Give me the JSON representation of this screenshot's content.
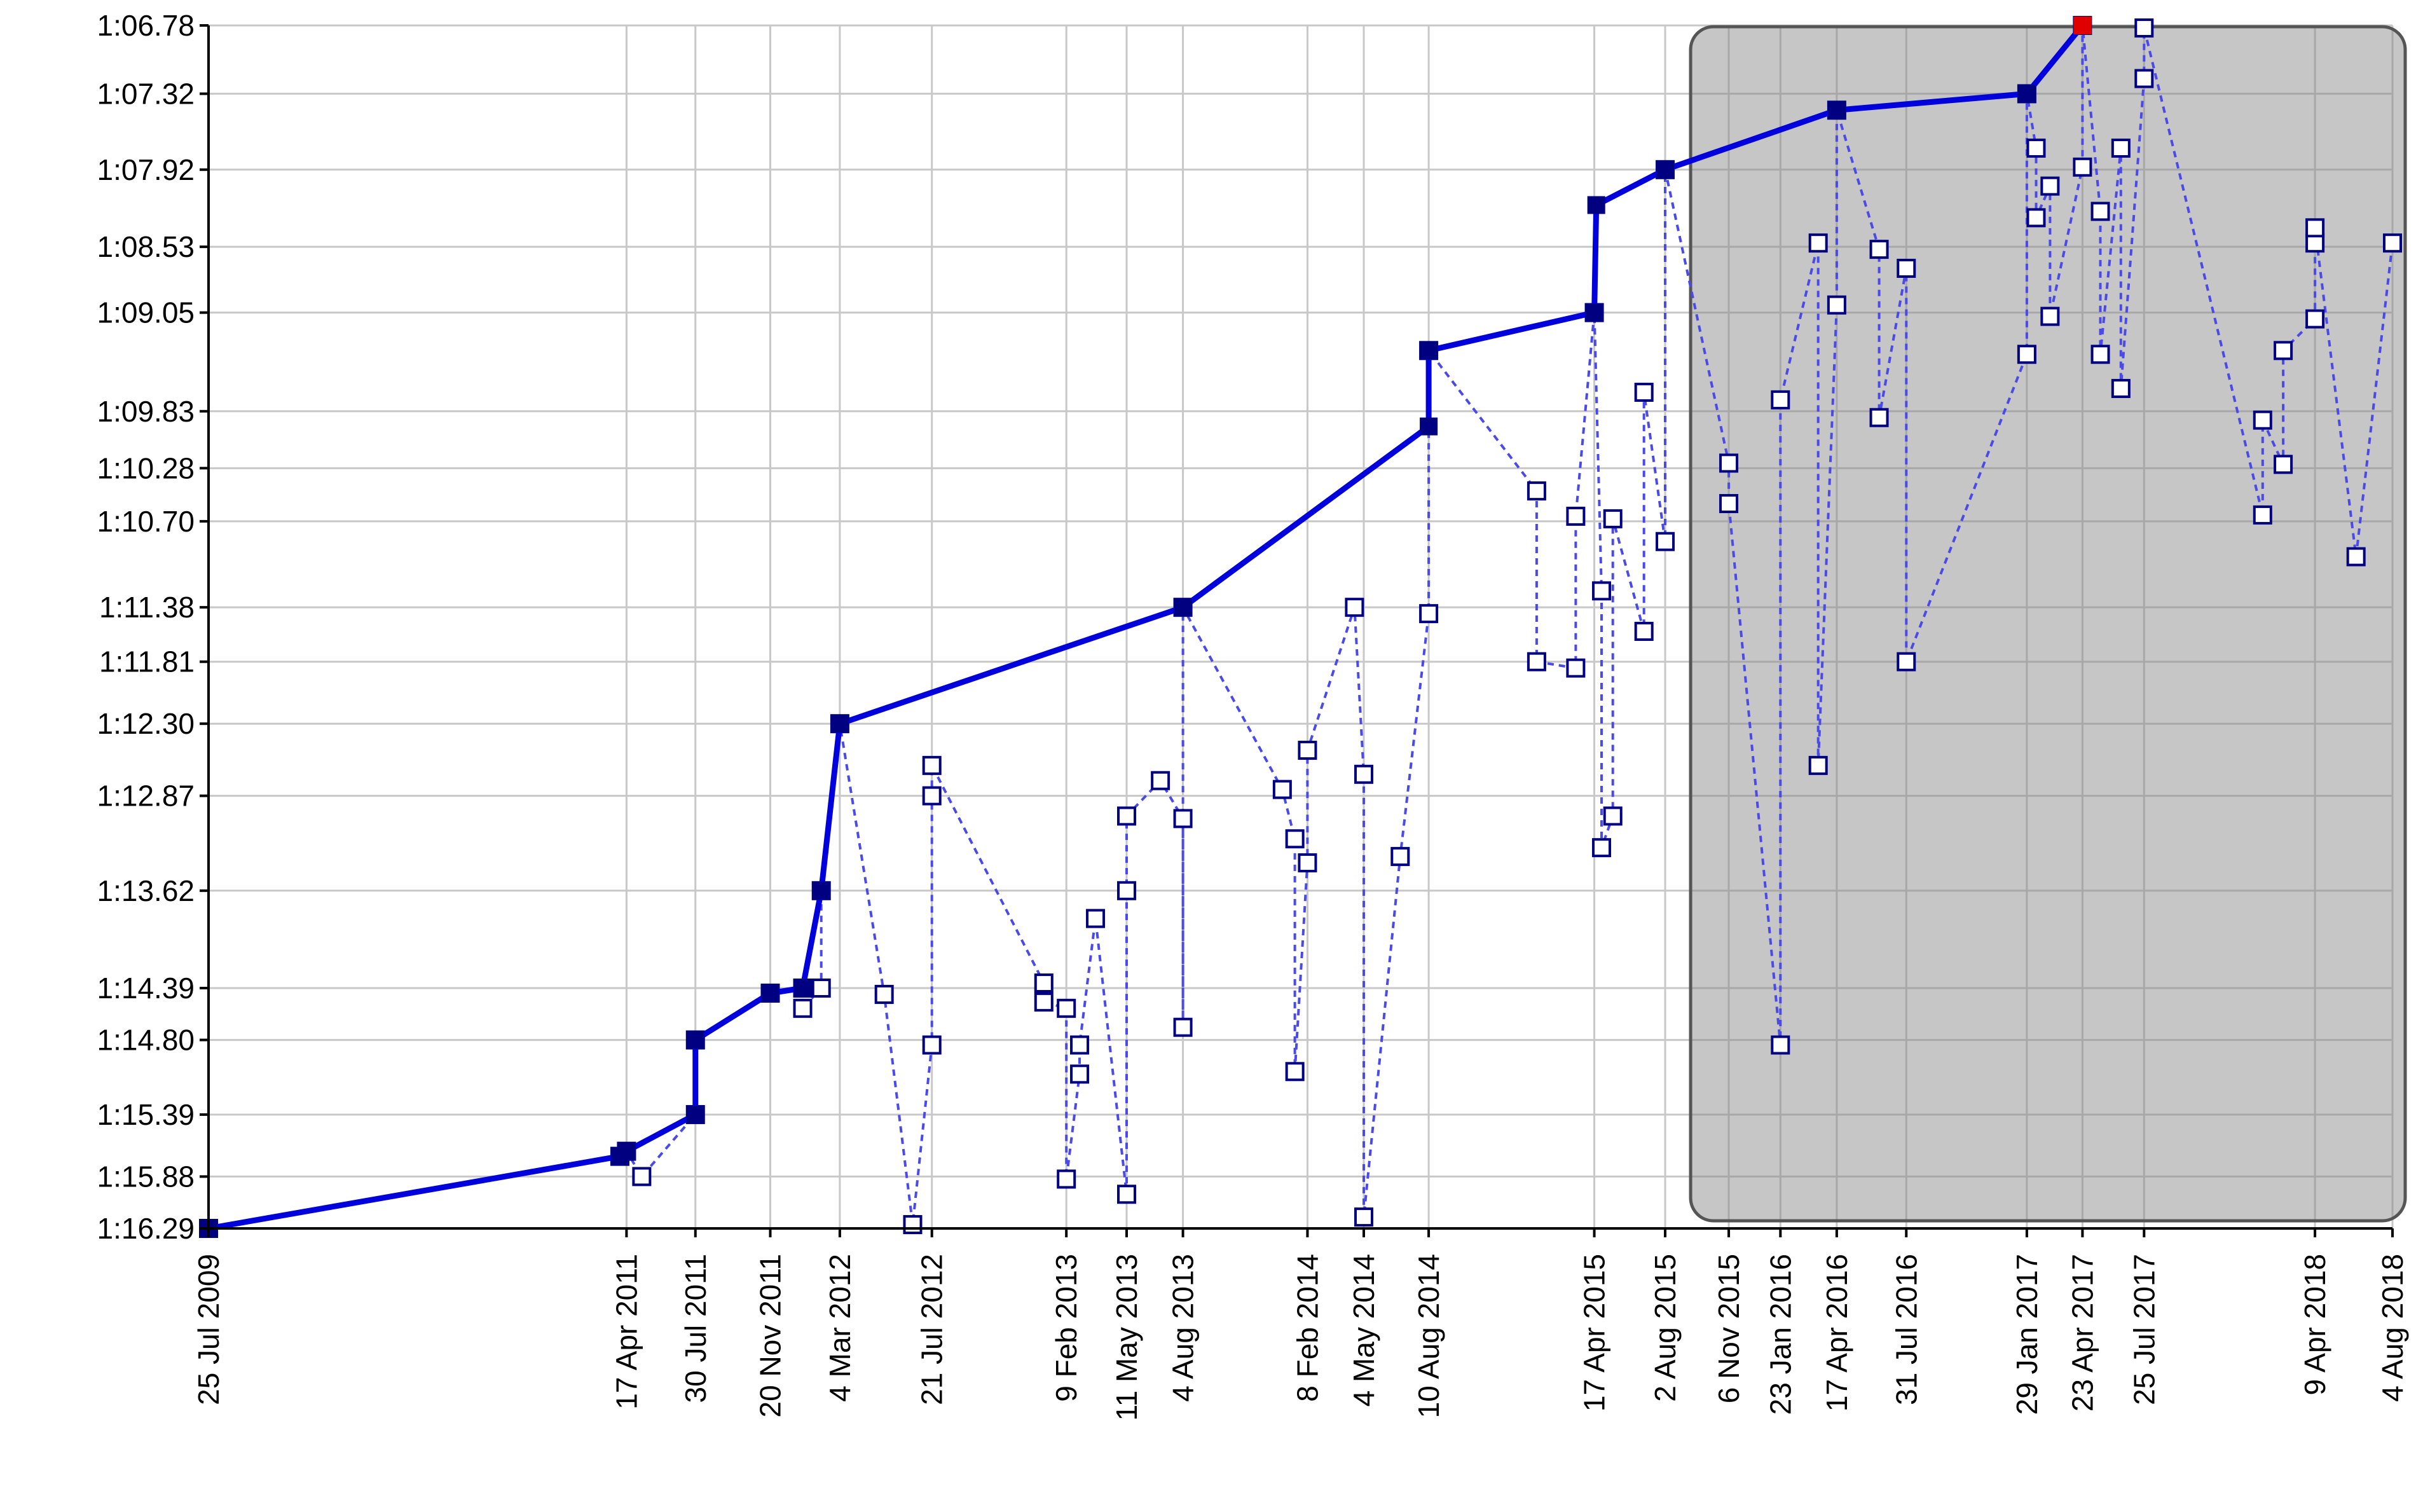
{
  "chart_data": {
    "type": "line",
    "y_axis": {
      "reversed": true,
      "ticks": [
        "1:06.78",
        "1:07.32",
        "1:07.92",
        "1:08.53",
        "1:09.05",
        "1:09.83",
        "1:10.28",
        "1:10.70",
        "1:11.38",
        "1:11.81",
        "1:12.30",
        "1:12.87",
        "1:13.62",
        "1:14.39",
        "1:14.80",
        "1:15.39",
        "1:15.88",
        "1:16.29"
      ],
      "tick_seconds": [
        66.78,
        67.32,
        67.92,
        68.53,
        69.05,
        69.83,
        70.28,
        70.7,
        71.38,
        71.81,
        72.3,
        72.87,
        73.62,
        74.39,
        74.8,
        75.39,
        75.88,
        76.29
      ],
      "range": [
        66.78,
        76.29
      ]
    },
    "x_axis": {
      "ticks": [
        "25 Jul 2009",
        "17 Apr 2011",
        "30 Jul 2011",
        "20 Nov 2011",
        "4 Mar 2012",
        "21 Jul 2012",
        "9 Feb 2013",
        "11 May 2013",
        "4 Aug 2013",
        "8 Feb 2014",
        "4 May 2014",
        "10 Aug 2014",
        "17 Apr 2015",
        "2 Aug 2015",
        "6 Nov 2015",
        "23 Jan 2016",
        "17 Apr 2016",
        "31 Jul 2016",
        "29 Jan 2017",
        "23 Apr 2017",
        "25 Jul 2017",
        "9 Apr 2018",
        "4 Aug 2018"
      ],
      "tick_dates": [
        "2009-07-25",
        "2011-04-17",
        "2011-07-30",
        "2011-11-20",
        "2012-03-04",
        "2012-07-21",
        "2013-02-09",
        "2013-05-11",
        "2013-08-04",
        "2014-02-08",
        "2014-05-04",
        "2014-08-10",
        "2015-04-17",
        "2015-08-02",
        "2015-11-06",
        "2016-01-23",
        "2016-04-17",
        "2016-07-31",
        "2017-01-29",
        "2017-04-23",
        "2017-07-25",
        "2018-04-09",
        "2018-08-04"
      ],
      "range": [
        "2009-07-25",
        "2018-08-04"
      ]
    },
    "grid": true,
    "highlight_range": [
      "2015-08-02",
      "2018-08-04"
    ],
    "series": [
      {
        "style": "best",
        "color": "#0000dd",
        "point_color": "#000080",
        "final_point_color": "#e00000",
        "points": [
          [
            "2009-07-25",
            76.29
          ],
          [
            "2011-04-07",
            75.72
          ],
          [
            "2011-04-17",
            75.68
          ],
          [
            "2011-07-30",
            75.39
          ],
          [
            "2011-07-30",
            74.8
          ],
          [
            "2011-11-20",
            74.43
          ],
          [
            "2012-01-08",
            74.39
          ],
          [
            "2012-02-05",
            73.62
          ],
          [
            "2012-03-04",
            72.3
          ],
          [
            "2013-08-04",
            71.38
          ],
          [
            "2014-08-10",
            69.95
          ],
          [
            "2014-08-10",
            69.35
          ],
          [
            "2015-04-17",
            69.05
          ],
          [
            "2015-04-20",
            68.2
          ],
          [
            "2015-08-02",
            67.92
          ],
          [
            "2016-04-17",
            67.45
          ],
          [
            "2017-01-29",
            67.32
          ],
          [
            "2017-04-23",
            66.78
          ]
        ]
      },
      {
        "style": "all",
        "color": "#4a4ae8",
        "point_color": "#000080",
        "points": [
          [
            "2009-07-25",
            76.29
          ],
          [
            "2011-04-07",
            75.72
          ],
          [
            "2011-04-17",
            75.68
          ],
          [
            "2011-05-10",
            75.88
          ],
          [
            "2011-07-30",
            75.39
          ],
          [
            "2011-07-30",
            74.8
          ],
          [
            "2011-11-20",
            74.43
          ],
          [
            "2012-01-08",
            74.39
          ],
          [
            "2012-01-08",
            74.55
          ],
          [
            "2012-02-05",
            74.39
          ],
          [
            "2012-02-05",
            73.62
          ],
          [
            "2012-03-04",
            72.3
          ],
          [
            "2012-05-10",
            74.44
          ],
          [
            "2012-06-22",
            76.26
          ],
          [
            "2012-07-21",
            74.84
          ],
          [
            "2012-07-21",
            72.87
          ],
          [
            "2012-07-21",
            72.63
          ],
          [
            "2013-01-06",
            74.35
          ],
          [
            "2013-01-06",
            74.5
          ],
          [
            "2013-02-09",
            74.55
          ],
          [
            "2013-02-09",
            75.9
          ],
          [
            "2013-03-01",
            75.07
          ],
          [
            "2013-03-01",
            74.84
          ],
          [
            "2013-03-25",
            73.84
          ],
          [
            "2013-05-11",
            76.02
          ],
          [
            "2013-05-11",
            73.62
          ],
          [
            "2013-05-11",
            73.03
          ],
          [
            "2013-07-01",
            72.75
          ],
          [
            "2013-08-04",
            73.05
          ],
          [
            "2013-08-04",
            74.7
          ],
          [
            "2013-08-04",
            71.38
          ],
          [
            "2014-01-01",
            72.82
          ],
          [
            "2014-01-20",
            73.21
          ],
          [
            "2014-01-20",
            75.05
          ],
          [
            "2014-02-08",
            73.4
          ],
          [
            "2014-02-08",
            72.51
          ],
          [
            "2014-04-20",
            71.38
          ],
          [
            "2014-05-04",
            72.7
          ],
          [
            "2014-05-04",
            76.2
          ],
          [
            "2014-06-28",
            73.35
          ],
          [
            "2014-08-10",
            71.43
          ],
          [
            "2014-08-10",
            69.35
          ],
          [
            "2015-01-20",
            70.46
          ],
          [
            "2015-01-20",
            71.81
          ],
          [
            "2015-03-20",
            71.86
          ],
          [
            "2015-03-20",
            70.66
          ],
          [
            "2015-04-17",
            69.05
          ],
          [
            "2015-04-28",
            71.25
          ],
          [
            "2015-04-28",
            73.28
          ],
          [
            "2015-05-15",
            73.03
          ],
          [
            "2015-05-15",
            70.68
          ],
          [
            "2015-07-01",
            71.57
          ],
          [
            "2015-07-01",
            69.68
          ],
          [
            "2015-08-02",
            70.86
          ],
          [
            "2015-08-02",
            67.92
          ],
          [
            "2015-11-06",
            70.24
          ],
          [
            "2015-11-06",
            70.56
          ],
          [
            "2016-01-23",
            74.84
          ],
          [
            "2016-01-23",
            69.74
          ],
          [
            "2016-03-20",
            68.5
          ],
          [
            "2016-03-20",
            72.63
          ],
          [
            "2016-04-17",
            68.99
          ],
          [
            "2016-04-17",
            67.45
          ],
          [
            "2016-06-20",
            68.55
          ],
          [
            "2016-06-20",
            69.88
          ],
          [
            "2016-07-31",
            68.7
          ],
          [
            "2016-07-31",
            71.81
          ],
          [
            "2017-01-29",
            69.38
          ],
          [
            "2017-01-29",
            67.32
          ],
          [
            "2017-02-12",
            67.75
          ],
          [
            "2017-02-12",
            68.3
          ],
          [
            "2017-03-05",
            68.05
          ],
          [
            "2017-03-05",
            69.08
          ],
          [
            "2017-04-23",
            67.9
          ],
          [
            "2017-04-23",
            66.78
          ],
          [
            "2017-05-20",
            68.25
          ],
          [
            "2017-05-20",
            69.38
          ],
          [
            "2017-06-20",
            67.75
          ],
          [
            "2017-06-20",
            69.65
          ],
          [
            "2017-07-25",
            67.2
          ],
          [
            "2017-07-25",
            66.8
          ],
          [
            "2018-01-20",
            70.65
          ],
          [
            "2018-01-20",
            69.9
          ],
          [
            "2018-02-20",
            70.25
          ],
          [
            "2018-02-20",
            69.35
          ],
          [
            "2018-04-09",
            69.1
          ],
          [
            "2018-04-09",
            68.5
          ],
          [
            "2018-04-09",
            68.38
          ],
          [
            "2018-06-10",
            70.98
          ],
          [
            "2018-08-04",
            68.5
          ]
        ]
      }
    ]
  }
}
